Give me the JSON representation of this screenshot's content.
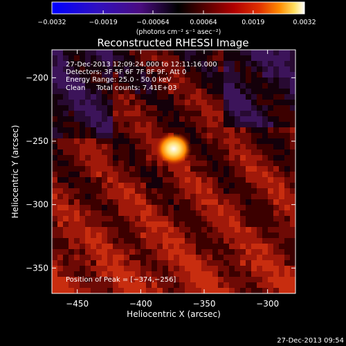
{
  "chart_data": {
    "type": "heatmap",
    "title": "Reconstructed RHESSI Image",
    "xlabel": "Heliocentric X (arcsec)",
    "ylabel": "Heliocentric Y (arcsec)",
    "xlim": [
      -470,
      -278
    ],
    "ylim": [
      -370,
      -178
    ],
    "xticks": [
      -450,
      -400,
      -350,
      -300
    ],
    "yticks": [
      -200,
      -250,
      -300,
      -350
    ],
    "xtick_labels": [
      "−450",
      "−400",
      "−350",
      "−300"
    ],
    "ytick_labels": [
      "−200",
      "−250",
      "−300",
      "−350"
    ],
    "peak": [
      -374,
      -256
    ],
    "annotations": [
      "27-Dec-2013 12:09:24.000 to 12:11:16.000",
      "Detectors: 3F 5F 6F 7F 8F 9F, Att 0",
      "Energy Range: 25.0 - 50.0 keV",
      "Clean     Total counts: 7.41E+03"
    ],
    "peak_label": "Position of Peak = [−374,−256]",
    "colorbar": {
      "range": [
        -0.0032,
        0.0032
      ],
      "ticks": [
        -0.0032,
        -0.0019,
        -0.00064,
        0.00064,
        0.0019,
        0.0032
      ],
      "tick_labels": [
        "−0.0032",
        "−0.0019",
        "−0.00064",
        "0.00064",
        "0.0019",
        "0.0032"
      ],
      "unit_label": "(photons cm⁻² s⁻¹ asec⁻²)",
      "colors": [
        "#0010ff",
        "#2a10d0",
        "#4a1090",
        "#000000",
        "#3a0000",
        "#8a0000",
        "#d02000",
        "#ff7000",
        "#ffd040",
        "#ffffff"
      ]
    },
    "timestamp": "27-Dec-2013 09:54"
  }
}
